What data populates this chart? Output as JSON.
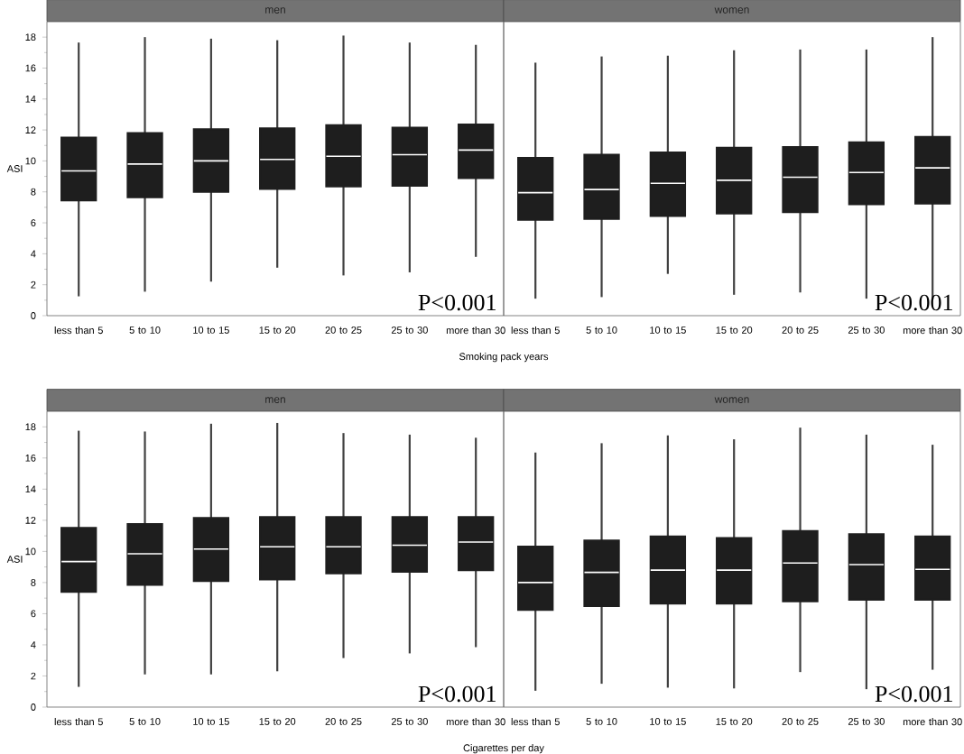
{
  "chart_data": [
    {
      "type": "box",
      "title": "men",
      "ylabel": "ASI",
      "xlabel": "Smoking pack years",
      "color": "#1e1e1e",
      "categories": [
        "less than 5",
        "5 to 10",
        "10 to 15",
        "15 to 20",
        "20 to 25",
        "25 to 30",
        "more than 30"
      ],
      "ylim": [
        0,
        19
      ],
      "yticks": [
        0,
        2,
        4,
        6,
        8,
        10,
        12,
        14,
        16,
        18
      ],
      "annotations": [
        "P<0.001"
      ],
      "boxes": [
        {
          "low": 1.25,
          "q1": 7.45,
          "median": 9.35,
          "q3": 11.5,
          "high": 17.65
        },
        {
          "low": 1.55,
          "q1": 7.65,
          "median": 9.8,
          "q3": 11.8,
          "high": 18.0
        },
        {
          "low": 2.2,
          "q1": 8.0,
          "median": 10.0,
          "q3": 12.05,
          "high": 17.9
        },
        {
          "low": 3.1,
          "q1": 8.2,
          "median": 10.1,
          "q3": 12.1,
          "high": 17.8
        },
        {
          "low": 2.6,
          "q1": 8.35,
          "median": 10.3,
          "q3": 12.3,
          "high": 18.1
        },
        {
          "low": 2.8,
          "q1": 8.4,
          "median": 10.4,
          "q3": 12.15,
          "high": 17.65
        },
        {
          "low": 3.8,
          "q1": 8.9,
          "median": 10.7,
          "q3": 12.35,
          "high": 17.5
        }
      ]
    },
    {
      "type": "box",
      "title": "women",
      "tick_labels": "x",
      "color": "#1e1e1e",
      "categories": [
        "less than 5",
        "5 to 10",
        "10 to 15",
        "15 to 20",
        "20 to 25",
        "25 to 30",
        "more than 30"
      ],
      "ylim": [
        0,
        19
      ],
      "yticks": [
        0,
        2,
        4,
        6,
        8,
        10,
        12,
        14,
        16,
        18
      ],
      "annotations": [
        "P<0.001"
      ],
      "boxes": [
        {
          "low": 1.1,
          "q1": 6.2,
          "median": 7.95,
          "q3": 10.2,
          "high": 16.35
        },
        {
          "low": 1.2,
          "q1": 6.25,
          "median": 8.15,
          "q3": 10.4,
          "high": 16.75
        },
        {
          "low": 2.7,
          "q1": 6.45,
          "median": 8.55,
          "q3": 10.55,
          "high": 16.8
        },
        {
          "low": 1.35,
          "q1": 6.6,
          "median": 8.75,
          "q3": 10.85,
          "high": 17.15
        },
        {
          "low": 1.5,
          "q1": 6.7,
          "median": 8.95,
          "q3": 10.9,
          "high": 17.2
        },
        {
          "low": 1.1,
          "q1": 7.2,
          "median": 9.25,
          "q3": 11.2,
          "high": 17.2
        },
        {
          "low": 1.05,
          "q1": 7.25,
          "median": 9.55,
          "q3": 11.55,
          "high": 18.0
        }
      ]
    },
    {
      "type": "box",
      "title": "men",
      "ylabel": "ASI",
      "xlabel": "Cigarettes per day",
      "color": "#1e1e1e",
      "categories": [
        "less than 5",
        "5 to 10",
        "10 to 15",
        "15 to 20",
        "20 to 25",
        "25 to 30",
        "more than 30"
      ],
      "ylim": [
        0,
        19
      ],
      "yticks": [
        0,
        2,
        4,
        6,
        8,
        10,
        12,
        14,
        16,
        18
      ],
      "annotations": [
        "P<0.001"
      ],
      "boxes": [
        {
          "low": 1.3,
          "q1": 7.4,
          "median": 9.35,
          "q3": 11.5,
          "high": 17.75
        },
        {
          "low": 2.1,
          "q1": 7.85,
          "median": 9.85,
          "q3": 11.75,
          "high": 17.7
        },
        {
          "low": 2.1,
          "q1": 8.1,
          "median": 10.15,
          "q3": 12.15,
          "high": 18.2
        },
        {
          "low": 2.3,
          "q1": 8.2,
          "median": 10.3,
          "q3": 12.2,
          "high": 18.25
        },
        {
          "low": 3.15,
          "q1": 8.6,
          "median": 10.3,
          "q3": 12.2,
          "high": 17.6
        },
        {
          "low": 3.45,
          "q1": 8.7,
          "median": 10.4,
          "q3": 12.2,
          "high": 17.5
        },
        {
          "low": 3.85,
          "q1": 8.8,
          "median": 10.6,
          "q3": 12.2,
          "high": 17.3
        }
      ]
    },
    {
      "type": "box",
      "title": "women",
      "tick_labels": "x",
      "color": "#1e1e1e",
      "categories": [
        "less than 5",
        "5 to 10",
        "10 to 15",
        "15 to 20",
        "20 to 25",
        "25 to 30",
        "more than 30"
      ],
      "ylim": [
        0,
        19
      ],
      "yticks": [
        0,
        2,
        4,
        6,
        8,
        10,
        12,
        14,
        16,
        18
      ],
      "annotations": [
        "P<0.001"
      ],
      "boxes": [
        {
          "low": 1.05,
          "q1": 6.25,
          "median": 8.0,
          "q3": 10.3,
          "high": 16.35
        },
        {
          "low": 1.5,
          "q1": 6.5,
          "median": 8.65,
          "q3": 10.7,
          "high": 16.95
        },
        {
          "low": 1.25,
          "q1": 6.65,
          "median": 8.8,
          "q3": 10.95,
          "high": 17.45
        },
        {
          "low": 1.2,
          "q1": 6.65,
          "median": 8.8,
          "q3": 10.85,
          "high": 17.2
        },
        {
          "low": 2.25,
          "q1": 6.8,
          "median": 9.25,
          "q3": 11.3,
          "high": 17.95
        },
        {
          "low": 1.15,
          "q1": 6.9,
          "median": 9.15,
          "q3": 11.1,
          "high": 17.5
        },
        {
          "low": 2.4,
          "q1": 6.9,
          "median": 8.85,
          "q3": 10.95,
          "high": 16.85
        }
      ]
    }
  ]
}
